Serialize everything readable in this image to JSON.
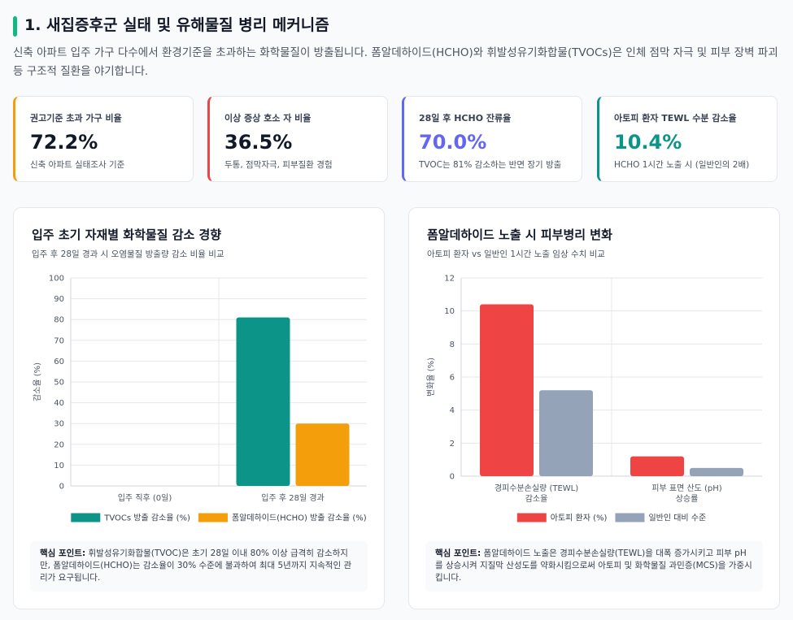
{
  "header": {
    "title": "1. 새집증후군 실태 및 유해물질 병리 메커니즘",
    "description": "신축 아파트 입주 가구 다수에서 환경기준을 초과하는 화학물질이 방출됩니다. 폼알데하이드(HCHO)와 휘발성유기화합물(TVOCs)은 인체 점막 자극 및 피부 장벽 파괴 등 구조적 질환을 야기합니다."
  },
  "cards": [
    {
      "label": "권고기준 초과 가구 비율",
      "value": "72.2%",
      "note": "신축 아파트 실태조사 기준",
      "color": "#f59e0b",
      "value_color": "#111827"
    },
    {
      "label": "이상 증상 호소 자 비율",
      "value": "36.5%",
      "note": "두통, 점막자극, 피부질환 경험",
      "color": "#ef4444",
      "value_color": "#111827"
    },
    {
      "label": "28일 후 HCHO 잔류율",
      "value": "70.0%",
      "note": "TVOC는 81% 감소하는 반면 장기 방출",
      "color": "#6366f1",
      "value_color": "#6366f1"
    },
    {
      "label": "아토피 환자 TEWL 수분 감소율",
      "value": "10.4%",
      "note": "HCHO 1시간 노출 시 (일반인의 2배)",
      "color": "#0d9488",
      "value_color": "#0d9488"
    }
  ],
  "chart_data": [
    {
      "type": "bar",
      "title": "입주 초기 자재별 화학물질 감소 경향",
      "subtitle": "입주 후 28일 경과 시 오염물질 방출량 감소 비율 비교",
      "ylabel": "감소율 (%)",
      "categories": [
        [
          "입주 직후 (0일)"
        ],
        [
          "입주 후 28일 경과"
        ]
      ],
      "series": [
        {
          "name": "TVOCs 방출 감소율 (%)",
          "color": "#0d9488",
          "values": [
            0,
            81
          ]
        },
        {
          "name": "폼알데하이드(HCHO) 방출 감소율 (%)",
          "color": "#f59e0b",
          "values": [
            0,
            30
          ]
        }
      ],
      "ylim": [
        0,
        100
      ],
      "yticks": [
        0,
        10,
        20,
        30,
        40,
        50,
        60,
        70,
        80,
        90,
        100
      ],
      "grid": true,
      "annotation_label": "핵심 포인트:",
      "annotation": "휘발성유기화합물(TVOC)은 초기 28일 이내 80% 이상 급격히 감소하지만, 폼알데하이드(HCHO)는 감소율이 30% 수준에 불과하여 최대 5년까지 지속적인 관리가 요구됩니다."
    },
    {
      "type": "bar",
      "title": "폼알데하이드 노출 시 피부병리 변화",
      "subtitle": "아토피 환자 vs 일반인 1시간 노출 임상 수치 비교",
      "ylabel": "변화율 (%)",
      "categories": [
        [
          "경피수분손실량 (TEWL)",
          "감소율"
        ],
        [
          "피부 표면 산도 (pH)",
          "상승률"
        ]
      ],
      "series": [
        {
          "name": "아토피 환자 (%)",
          "color": "#ef4444",
          "values": [
            10.4,
            1.2
          ]
        },
        {
          "name": "일반인 대비 수준",
          "color": "#94a3b8",
          "values": [
            5.2,
            0.5
          ]
        }
      ],
      "ylim": [
        0,
        12
      ],
      "yticks": [
        0,
        2,
        4,
        6,
        8,
        10,
        12
      ],
      "grid": true,
      "annotation_label": "핵심 포인트:",
      "annotation": "폼알데하이드 노출은 경피수분손실량(TEWL)을 대폭 증가시키고 피부 pH를 상승시켜 지질막 산성도를 약화시킴으로써 아토피 및 화학물질 과민증(MCS)을 가중시킵니다."
    }
  ]
}
